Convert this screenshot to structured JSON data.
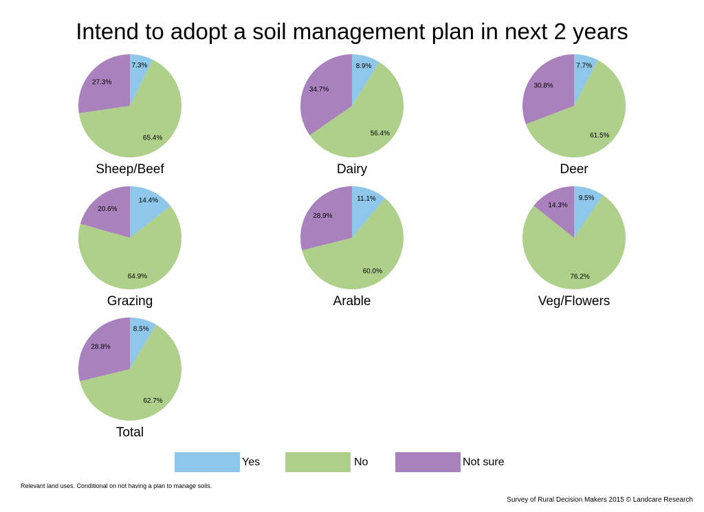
{
  "title": "Intend to adopt a soil management plan in next 2 years",
  "colors": {
    "yes": "#8ec7ea",
    "no": "#aed08a",
    "not_sure": "#a982bd"
  },
  "legend": [
    {
      "key": "yes",
      "label": "Yes"
    },
    {
      "key": "no",
      "label": "No"
    },
    {
      "key": "not_sure",
      "label": "Not sure"
    }
  ],
  "footnote": "Relevant land uses. Conditional on not having a plan to manage soils.",
  "source": "Survey of Rural Decision Makers 2015 © Landcare Research",
  "chart_data": [
    {
      "type": "pie",
      "label": "Sheep/Beef",
      "categories": [
        "Yes",
        "No",
        "Not sure"
      ],
      "values": [
        7.3,
        65.4,
        27.3
      ],
      "data_labels": [
        "7.3%",
        "65.4%",
        "27.3%"
      ]
    },
    {
      "type": "pie",
      "label": "Dairy",
      "categories": [
        "Yes",
        "No",
        "Not sure"
      ],
      "values": [
        8.9,
        56.4,
        34.7
      ],
      "data_labels": [
        "8.9%",
        "56.4%",
        "34.7%"
      ]
    },
    {
      "type": "pie",
      "label": "Deer",
      "categories": [
        "Yes",
        "No",
        "Not sure"
      ],
      "values": [
        7.7,
        61.5,
        30.8
      ],
      "data_labels": [
        "7.7%",
        "61.5%",
        "30.8%"
      ]
    },
    {
      "type": "pie",
      "label": "Grazing",
      "categories": [
        "Yes",
        "No",
        "Not sure"
      ],
      "values": [
        14.4,
        64.9,
        20.6
      ],
      "data_labels": [
        "14.4%",
        "64.9%",
        "20.6%"
      ]
    },
    {
      "type": "pie",
      "label": "Arable",
      "categories": [
        "Yes",
        "No",
        "Not sure"
      ],
      "values": [
        11.1,
        60.0,
        28.9
      ],
      "data_labels": [
        "11.1%",
        "60.0%",
        "28.9%"
      ]
    },
    {
      "type": "pie",
      "label": "Veg/Flowers",
      "categories": [
        "Yes",
        "No",
        "Not sure"
      ],
      "values": [
        9.5,
        76.2,
        14.3
      ],
      "data_labels": [
        "9.5%",
        "76.2%",
        "14.3%"
      ]
    },
    {
      "type": "pie",
      "label": "Total",
      "categories": [
        "Yes",
        "No",
        "Not sure"
      ],
      "values": [
        8.5,
        62.7,
        28.8
      ],
      "data_labels": [
        "8.5%",
        "62.7%",
        "28.8%"
      ]
    }
  ]
}
